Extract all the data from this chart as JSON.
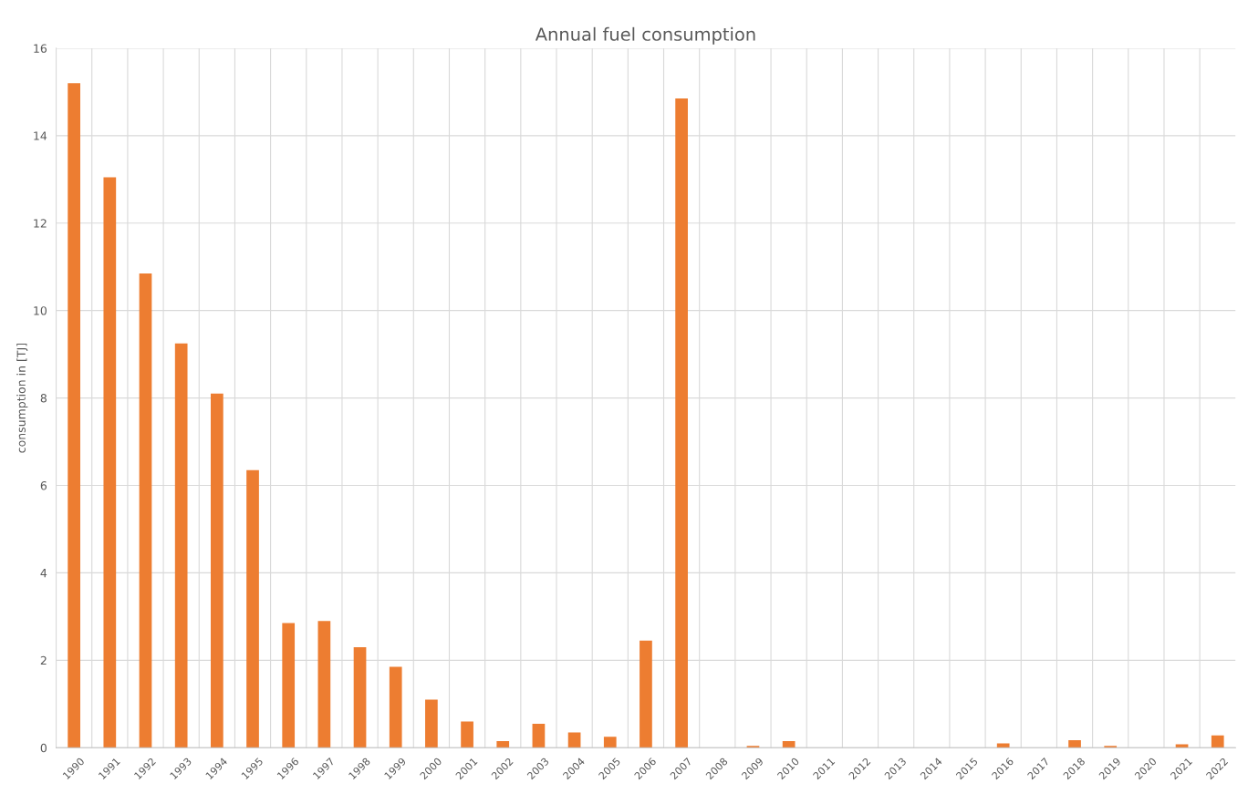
{
  "chart_data": {
    "type": "bar",
    "title": "Annual fuel consumption",
    "ylabel": "consumption in [TJ]",
    "categories": [
      "1990",
      "1991",
      "1992",
      "1993",
      "1994",
      "1995",
      "1996",
      "1997",
      "1998",
      "1999",
      "2000",
      "2001",
      "2002",
      "2003",
      "2004",
      "2005",
      "2006",
      "2007",
      "2008",
      "2009",
      "2010",
      "2011",
      "2012",
      "2013",
      "2014",
      "2015",
      "2016",
      "2017",
      "2018",
      "2019",
      "2020",
      "2021",
      "2022"
    ],
    "values": [
      15.2,
      13.05,
      10.85,
      9.25,
      8.1,
      6.35,
      2.85,
      2.9,
      2.3,
      1.85,
      1.1,
      0.6,
      0.15,
      0.55,
      0.35,
      0.25,
      2.45,
      14.85,
      0,
      0.04,
      0.15,
      0,
      0,
      0,
      0,
      0,
      0.1,
      0,
      0.17,
      0.04,
      0,
      0.08,
      0.28
    ],
    "color": "#ed7d31",
    "ylim": [
      0,
      16
    ],
    "yticks": [
      0,
      2,
      4,
      6,
      8,
      10,
      12,
      14,
      16
    ],
    "grid": true
  }
}
